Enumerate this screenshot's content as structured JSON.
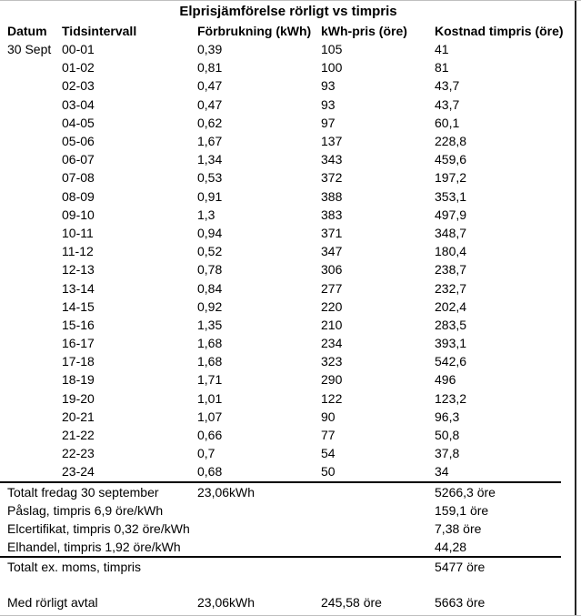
{
  "title": "Elprisjämförelse rörligt vs timpris",
  "table": {
    "columns": [
      "Datum",
      "Tidsintervall",
      "Förbrukning (kWh)",
      "kWh-pris (öre)",
      "Kostnad timpris (öre)"
    ],
    "date_label": "30 Sept",
    "rows": [
      {
        "interval": "00-01",
        "consumption": "0,39",
        "price": "105",
        "cost": "41"
      },
      {
        "interval": "01-02",
        "consumption": "0,81",
        "price": "100",
        "cost": "81"
      },
      {
        "interval": "02-03",
        "consumption": "0,47",
        "price": "93",
        "cost": "43,7"
      },
      {
        "interval": "03-04",
        "consumption": "0,47",
        "price": "93",
        "cost": "43,7"
      },
      {
        "interval": "04-05",
        "consumption": "0,62",
        "price": "97",
        "cost": "60,1"
      },
      {
        "interval": "05-06",
        "consumption": "1,67",
        "price": "137",
        "cost": "228,8"
      },
      {
        "interval": "06-07",
        "consumption": "1,34",
        "price": "343",
        "cost": "459,6"
      },
      {
        "interval": "07-08",
        "consumption": "0,53",
        "price": "372",
        "cost": "197,2"
      },
      {
        "interval": "08-09",
        "consumption": "0,91",
        "price": "388",
        "cost": "353,1"
      },
      {
        "interval": "09-10",
        "consumption": "1,3",
        "price": "383",
        "cost": "497,9"
      },
      {
        "interval": "10-11",
        "consumption": "0,94",
        "price": "371",
        "cost": "348,7"
      },
      {
        "interval": "11-12",
        "consumption": "0,52",
        "price": "347",
        "cost": "180,4"
      },
      {
        "interval": "12-13",
        "consumption": "0,78",
        "price": "306",
        "cost": "238,7"
      },
      {
        "interval": "13-14",
        "consumption": "0,84",
        "price": "277",
        "cost": "232,7"
      },
      {
        "interval": "14-15",
        "consumption": "0,92",
        "price": "220",
        "cost": "202,4"
      },
      {
        "interval": "15-16",
        "consumption": "1,35",
        "price": "210",
        "cost": "283,5"
      },
      {
        "interval": "16-17",
        "consumption": "1,68",
        "price": "234",
        "cost": "393,1"
      },
      {
        "interval": "17-18",
        "consumption": "1,68",
        "price": "323",
        "cost": "542,6"
      },
      {
        "interval": "18-19",
        "consumption": "1,71",
        "price": "290",
        "cost": "496"
      },
      {
        "interval": "19-20",
        "consumption": "1,01",
        "price": "122",
        "cost": "123,2"
      },
      {
        "interval": "20-21",
        "consumption": "1,07",
        "price": "90",
        "cost": "96,3"
      },
      {
        "interval": "21-22",
        "consumption": "0,66",
        "price": "77",
        "cost": "50,8"
      },
      {
        "interval": "22-23",
        "consumption": "0,7",
        "price": "54",
        "cost": "37,8"
      },
      {
        "interval": "23-24",
        "consumption": "0,68",
        "price": "50",
        "cost": "34"
      }
    ]
  },
  "summary": [
    {
      "label": "Totalt fredag 30 september",
      "consumption": "23,06kWh",
      "price": "",
      "cost": "5266,3 öre"
    },
    {
      "label": "Påslag, timpris 6,9 öre/kWh",
      "consumption": "",
      "price": "",
      "cost": "159,1 öre"
    },
    {
      "label": "Elcertifikat, timpris 0,32 öre/kWh",
      "consumption": "",
      "price": "",
      "cost": "7,38 öre"
    },
    {
      "label": "Elhandel, timpris 1,92 öre/kWh",
      "consumption": "",
      "price": "",
      "cost": "44,28"
    }
  ],
  "total_ex_moms": {
    "label": "Totalt ex. moms, timpris",
    "cost": "5477 öre"
  },
  "with_variable": {
    "label": "Med rörligt avtal",
    "consumption": "23,06kWh",
    "price": "245,58 öre",
    "cost": "5663 öre"
  }
}
